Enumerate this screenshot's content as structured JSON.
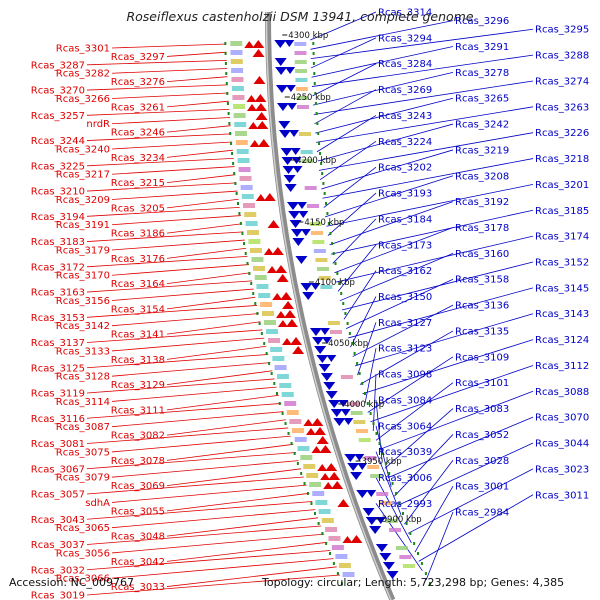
{
  "title": "Roseiflexus castenholzii DSM 13941, complete genome",
  "footer": {
    "accession": "Accession: NC_009767",
    "summary": "Topology: circular; Length: 5,723,298 bp; Genes: 4,385"
  },
  "colors": {
    "forward": "#e00000",
    "reverse": "#0000c8",
    "backbone": "#8c8c8c",
    "tick": "#1a8a1a"
  },
  "kbp_marks": [
    "4300 kbp",
    "4250 kbp",
    "4200 kbp",
    "4150 kbp",
    "4100 kbp",
    "4050 kbp",
    "4000 kbp",
    "3950 kbp",
    "3900 kbp"
  ],
  "left_labels": [
    "Rcas_3301",
    "Rcas_3297",
    "Rcas_3287",
    "Rcas_3282",
    "Rcas_3276",
    "Rcas_3270",
    "Rcas_3266",
    "Rcas_3261",
    "Rcas_3257",
    "nrdR",
    "Rcas_3246",
    "Rcas_3244",
    "Rcas_3240",
    "Rcas_3234",
    "Rcas_3225",
    "Rcas_3217",
    "Rcas_3215",
    "Rcas_3210",
    "Rcas_3209",
    "Rcas_3205",
    "Rcas_3194",
    "Rcas_3191",
    "Rcas_3186",
    "Rcas_3183",
    "Rcas_3179",
    "Rcas_3176",
    "Rcas_3172",
    "Rcas_3170",
    "Rcas_3164",
    "Rcas_3163",
    "Rcas_3156",
    "Rcas_3154",
    "Rcas_3153",
    "Rcas_3142",
    "Rcas_3141",
    "Rcas_3137",
    "Rcas_3133",
    "Rcas_3138",
    "Rcas_3125",
    "Rcas_3128",
    "Rcas_3129",
    "Rcas_3119",
    "Rcas_3114",
    "Rcas_3111",
    "Rcas_3116",
    "Rcas_3087",
    "Rcas_3082",
    "Rcas_3081",
    "Rcas_3075",
    "Rcas_3078",
    "Rcas_3067",
    "Rcas_3079",
    "Rcas_3069",
    "Rcas_3057",
    "sdhA",
    "Rcas_3055",
    "Rcas_3043",
    "Rcas_3065",
    "Rcas_3048",
    "Rcas_3037",
    "Rcas_3056",
    "Rcas_3042",
    "Rcas_3032",
    "Rcas_3066",
    "Rcas_3033",
    "Rcas_3019"
  ],
  "right_labels": [
    "Rcas_3314",
    "Rcas_3296",
    "Rcas_3295",
    "Rcas_3294",
    "Rcas_3291",
    "Rcas_3288",
    "Rcas_3284",
    "Rcas_3278",
    "Rcas_3274",
    "Rcas_3269",
    "Rcas_3265",
    "Rcas_3263",
    "Rcas_3243",
    "Rcas_3242",
    "Rcas_3226",
    "Rcas_3224",
    "Rcas_3219",
    "Rcas_3218",
    "Rcas_3202",
    "Rcas_3208",
    "Rcas_3201",
    "Rcas_3193",
    "Rcas_3192",
    "Rcas_3185",
    "Rcas_3184",
    "Rcas_3178",
    "Rcas_3174",
    "Rcas_3173",
    "Rcas_3160",
    "Rcas_3152",
    "Rcas_3162",
    "Rcas_3158",
    "Rcas_3145",
    "Rcas_3150",
    "Rcas_3136",
    "Rcas_3143",
    "Rcas_3127",
    "Rcas_3135",
    "Rcas_3124",
    "Rcas_3123",
    "Rcas_3109",
    "Rcas_3112",
    "Rcas_3098",
    "Rcas_3101",
    "Rcas_3088",
    "Rcas_3084",
    "Rcas_3083",
    "Rcas_3070",
    "Rcas_3064",
    "Rcas_3052",
    "Rcas_3044",
    "Rcas_3039",
    "Rcas_3028",
    "Rcas_3023",
    "Rcas_3006",
    "Rcas_3001",
    "Rcas_3011",
    "Rcas_2993",
    "Rcas_2984"
  ]
}
